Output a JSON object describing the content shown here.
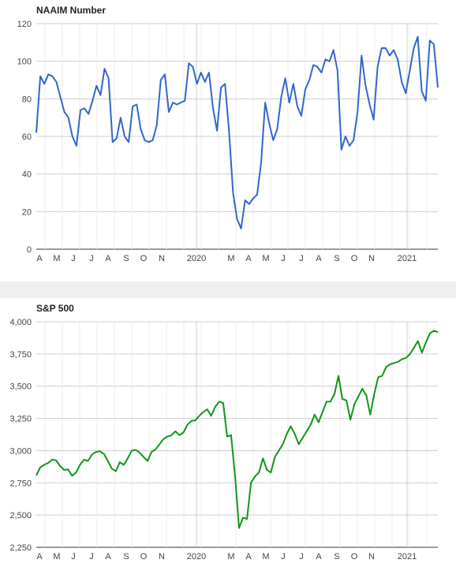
{
  "chart_data": [
    {
      "type": "line",
      "title": "NAAIM Number",
      "xlabel": "",
      "ylabel": "",
      "ylim": [
        0,
        120
      ],
      "y_ticks": [
        "0",
        "20",
        "40",
        "60",
        "80",
        "100",
        "120"
      ],
      "x_tick_labels": [
        "A",
        "M",
        "J",
        "J",
        "A",
        "S",
        "O",
        "N",
        "2020",
        "M",
        "A",
        "M",
        "J",
        "J",
        "A",
        "S",
        "O",
        "N",
        "2021"
      ],
      "grid": true,
      "color": "#3366cc",
      "series": [
        {
          "values": [
            62,
            92,
            88,
            93,
            92,
            89,
            81,
            73,
            70,
            60,
            55,
            74,
            75,
            72,
            79,
            87,
            82,
            96,
            91,
            57,
            59,
            70,
            60,
            57,
            76,
            77,
            64,
            58,
            57,
            58,
            66,
            90,
            93,
            73,
            78,
            77,
            78,
            79,
            99,
            97,
            88,
            94,
            89,
            94,
            75,
            63,
            86,
            88,
            63,
            30,
            16,
            11,
            26,
            24,
            27,
            29,
            46,
            78,
            67,
            58,
            64,
            81,
            91,
            78,
            88,
            76,
            71,
            85,
            90,
            98,
            97,
            94,
            101,
            100,
            106,
            95,
            53,
            60,
            55,
            58,
            73,
            103,
            87,
            77,
            69,
            97,
            107,
            107,
            103,
            106,
            101,
            89,
            83,
            95,
            107,
            113,
            84,
            79,
            111,
            109,
            86
          ]
        }
      ]
    },
    {
      "type": "line",
      "title": "S&P 500",
      "xlabel": "",
      "ylabel": "",
      "ylim": [
        2250,
        4000
      ],
      "y_ticks": [
        "2,250",
        "2,500",
        "2,750",
        "3,000",
        "3,250",
        "3,500",
        "3,750",
        "4,000"
      ],
      "x_tick_labels": [
        "A",
        "M",
        "J",
        "J",
        "A",
        "S",
        "O",
        "N",
        "2020",
        "M",
        "A",
        "M",
        "J",
        "J",
        "A",
        "S",
        "O",
        "N",
        "2021"
      ],
      "grid": true,
      "color": "#109618",
      "series": [
        {
          "values": [
            2808,
            2870,
            2890,
            2905,
            2930,
            2925,
            2880,
            2850,
            2855,
            2805,
            2830,
            2890,
            2930,
            2920,
            2970,
            2990,
            2995,
            2975,
            2920,
            2860,
            2840,
            2910,
            2890,
            2940,
            3000,
            3005,
            2985,
            2950,
            2920,
            2990,
            3010,
            3050,
            3090,
            3110,
            3120,
            3150,
            3120,
            3140,
            3200,
            3230,
            3235,
            3270,
            3300,
            3320,
            3270,
            3340,
            3380,
            3370,
            3110,
            3120,
            2800,
            2400,
            2480,
            2470,
            2750,
            2800,
            2830,
            2940,
            2850,
            2830,
            2950,
            3000,
            3050,
            3130,
            3190,
            3130,
            3050,
            3100,
            3150,
            3200,
            3280,
            3220,
            3300,
            3380,
            3380,
            3440,
            3580,
            3400,
            3390,
            3240,
            3360,
            3420,
            3480,
            3430,
            3280,
            3440,
            3570,
            3580,
            3650,
            3670,
            3680,
            3690,
            3710,
            3720,
            3750,
            3800,
            3850,
            3760,
            3840,
            3910,
            3930,
            3920
          ]
        }
      ]
    }
  ]
}
